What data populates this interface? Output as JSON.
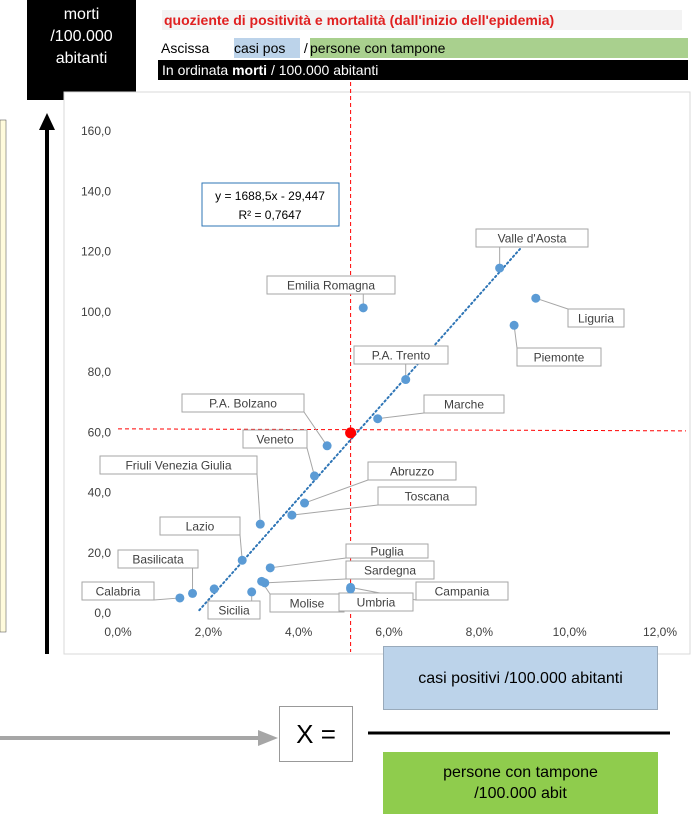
{
  "header": {
    "y_box_text": "morti\n/100.000\nabitanti",
    "title": "quoziente di positività e mortalità (dall'inizio dell'epidemia)",
    "x_line_prefix": "Ascissa ",
    "x_line_casi": "casi pos",
    "x_line_sep": " / ",
    "x_line_persone": "persone con tampone",
    "y_line_prefix": "In ordinata ",
    "y_line_bold": "morti",
    "y_line_suffix": " / 100.000 abitanti"
  },
  "formula": {
    "numerator": "casi positivi  /100.000 abitanti",
    "x_label": "X =",
    "denominator": "persone con tampone /100.000 abit"
  },
  "colors": {
    "point": "#5b9bd5",
    "trend": "#2e75b6",
    "highlight": "#ff0000",
    "ref_line": "#ff0000",
    "title": "#e02020",
    "casi_bg": "#bcd3ea",
    "persone_bg": "#a9d08e"
  },
  "chart_data": {
    "type": "scatter",
    "xlim": [
      0,
      0.12
    ],
    "ylim": [
      0,
      160
    ],
    "x_ticks": [
      "0,0%",
      "2,0%",
      "4,0%",
      "6,0%",
      "8,0%",
      "10,0%",
      "12,0%"
    ],
    "y_ticks": [
      "0,0",
      "20,0",
      "40,0",
      "60,0",
      "80,0",
      "100,0",
      "120,0",
      "140,0",
      "160,0"
    ],
    "grid": false,
    "trendline": {
      "label_line1": "y = 1688,5x - 29,447",
      "label_line2": "R² = 0,7647",
      "slope": 1688.5,
      "intercept": -29.447,
      "x_range": [
        0.018,
        0.089
      ]
    },
    "highlight_point": {
      "x": 0.0515,
      "y": 59.8
    },
    "points": [
      {
        "name": "Valle d'Aosta",
        "x": 0.0845,
        "y": 114.5
      },
      {
        "name": "Liguria",
        "x": 0.0925,
        "y": 104.5
      },
      {
        "name": "Emilia Romagna",
        "x": 0.0543,
        "y": 101.3
      },
      {
        "name": "Piemonte",
        "x": 0.0877,
        "y": 95.5
      },
      {
        "name": "P.A. Trento",
        "x": 0.0637,
        "y": 77.5
      },
      {
        "name": "Marche",
        "x": 0.0575,
        "y": 64.5
      },
      {
        "name": "P.A. Bolzano",
        "x": 0.0463,
        "y": 55.5
      },
      {
        "name": "Veneto",
        "x": 0.0435,
        "y": 45.5
      },
      {
        "name": "Abruzzo",
        "x": 0.0413,
        "y": 36.5
      },
      {
        "name": "Toscana",
        "x": 0.0385,
        "y": 32.5
      },
      {
        "name": "Friuli Venezia Giulia",
        "x": 0.0315,
        "y": 29.5
      },
      {
        "name": "Lazio",
        "x": 0.0275,
        "y": 17.5
      },
      {
        "name": "Puglia",
        "x": 0.0337,
        "y": 15.0
      },
      {
        "name": "Sardegna",
        "x": 0.0325,
        "y": 10.0
      },
      {
        "name": "Molise",
        "x": 0.0318,
        "y": 10.5
      },
      {
        "name": "Campania",
        "x": 0.0515,
        "y": 8.5
      },
      {
        "name": "Umbria",
        "x": 0.0515,
        "y": 8.0
      },
      {
        "name": "Sicilia",
        "x": 0.0296,
        "y": 7.0
      },
      {
        "name": "Basilicata",
        "x": 0.0165,
        "y": 6.5
      },
      {
        "name": "Calabria",
        "x": 0.0137,
        "y": 5.0
      },
      {
        "name": "Campania-b",
        "x": 0.0213,
        "y": 8.0
      }
    ]
  }
}
